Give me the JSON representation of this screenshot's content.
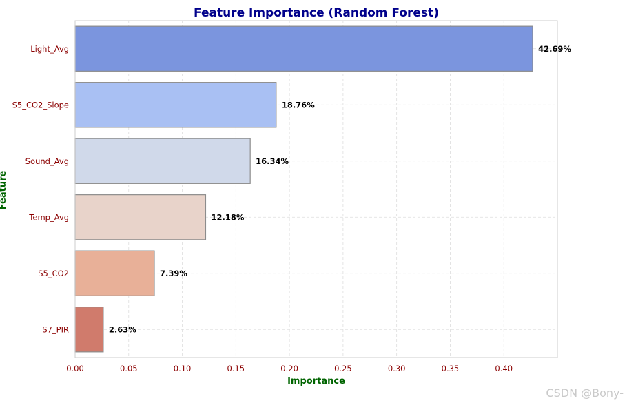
{
  "chart_data": {
    "type": "bar",
    "orientation": "horizontal",
    "title": "Feature Importance (Random Forest)",
    "xlabel": "Importance",
    "ylabel": "Feature",
    "categories": [
      "Light_Avg",
      "S5_CO2_Slope",
      "Sound_Avg",
      "Temp_Avg",
      "S5_CO2",
      "S7_PIR"
    ],
    "values": [
      0.4269,
      0.1876,
      0.1634,
      0.1218,
      0.0739,
      0.0263
    ],
    "data_labels": [
      "42.69%",
      "18.76%",
      "16.34%",
      "12.18%",
      "7.39%",
      "2.63%"
    ],
    "bar_colors": [
      "#7b95de",
      "#a9c0f3",
      "#d0d9ea",
      "#e8d3ca",
      "#e8b098",
      "#d07b6c"
    ],
    "xlim": [
      0,
      0.45
    ],
    "xticks": [
      0.0,
      0.05,
      0.1,
      0.15,
      0.2,
      0.25,
      0.3,
      0.35,
      0.4
    ],
    "xtick_labels": [
      "0.00",
      "0.05",
      "0.10",
      "0.15",
      "0.20",
      "0.25",
      "0.30",
      "0.35",
      "0.40"
    ],
    "grid": true,
    "colors": {
      "title": "#00008b",
      "axis_label": "#006400",
      "tick_label": "#8b0000",
      "grid": "#dddddd",
      "bar_edge": "#8c8c8c",
      "frame": "#cccccc"
    }
  },
  "watermark": "CSDN @Bony-"
}
